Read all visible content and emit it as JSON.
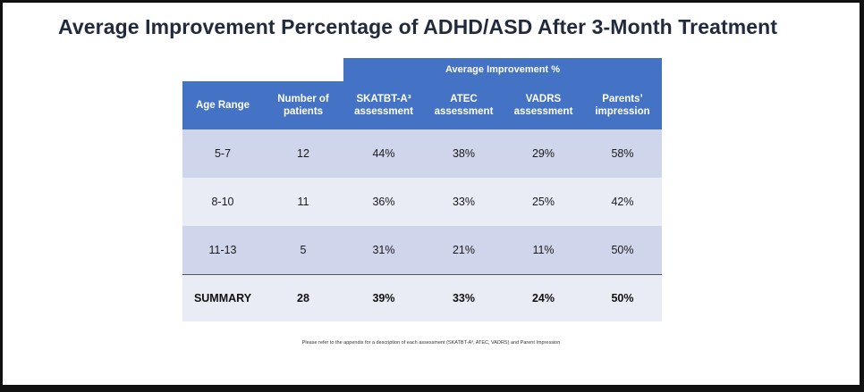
{
  "title": "Average Improvement Percentage of ADHD/ASD After 3-Month Treatment",
  "table": {
    "group_header": "Average Improvement %",
    "headers": [
      "Age Range",
      "Number of patients",
      "SKATBT-A³ assessment",
      "ATEC assessment",
      "VADRS assessment",
      "Parents’ impression"
    ],
    "rows": [
      [
        "5-7",
        "12",
        "44%",
        "38%",
        "29%",
        "58%"
      ],
      [
        "8-10",
        "11",
        "36%",
        "33%",
        "25%",
        "42%"
      ],
      [
        "11-13",
        "5",
        "31%",
        "21%",
        "11%",
        "50%"
      ]
    ],
    "summary": [
      "SUMMARY",
      "28",
      "39%",
      "33%",
      "24%",
      "50%"
    ]
  },
  "footnote": "Please refer to the appendix for a description of each assessment (SKATBT-A³, ATEC, VADRS) and Parent Impression",
  "colors": {
    "header_bg": "#4472c4",
    "row_dark": "#cfd5ea",
    "row_light": "#e9ebf5",
    "title": "#222a3d"
  }
}
